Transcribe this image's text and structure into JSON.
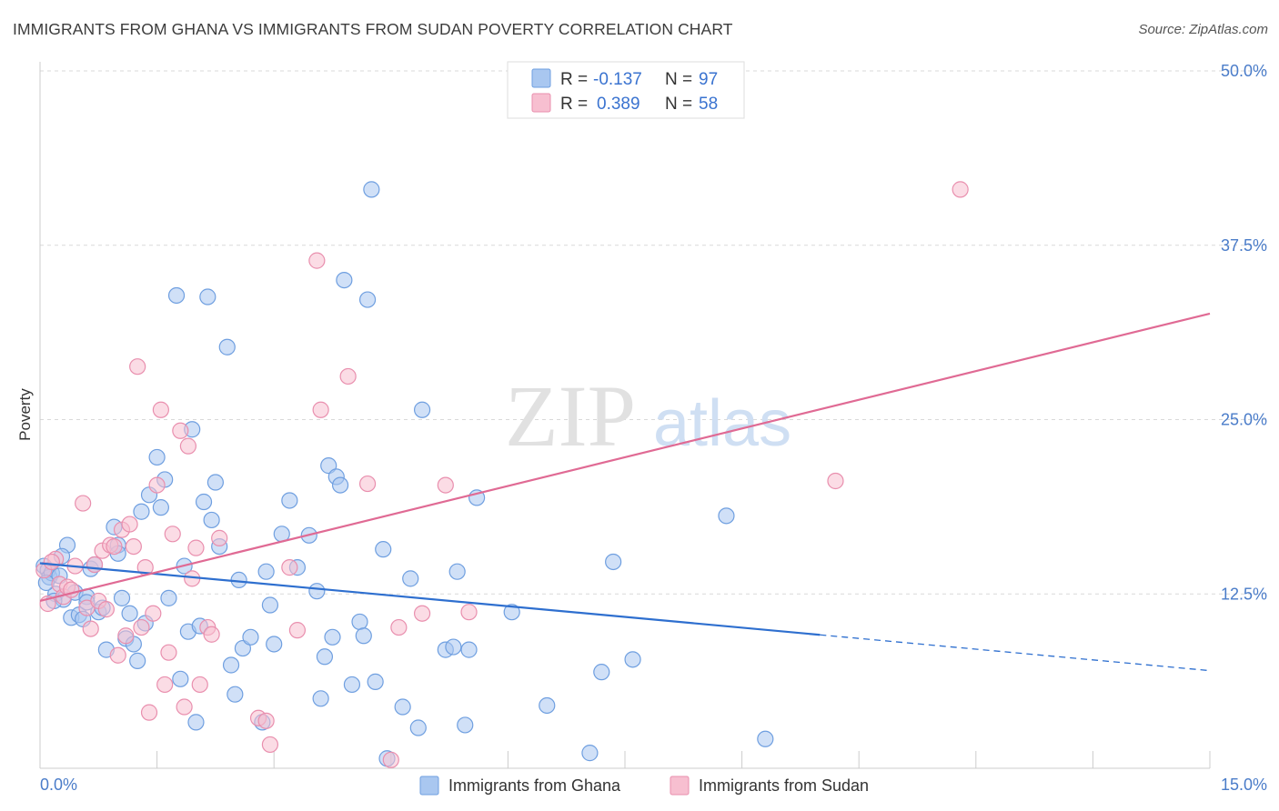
{
  "title": "IMMIGRANTS FROM GHANA VS IMMIGRANTS FROM SUDAN POVERTY CORRELATION CHART",
  "source": "Source: ZipAtlas.com",
  "watermark": {
    "zip": "ZIP",
    "atlas": "atlas"
  },
  "colors": {
    "ghana_fill": "#a9c7f0",
    "ghana_stroke": "#6f9fe0",
    "ghana_line": "#2e6fcf",
    "sudan_fill": "#f7bfd0",
    "sudan_stroke": "#e98fae",
    "sudan_line": "#e06a94",
    "grid": "#d9d9d9",
    "tick_label": "#4a7cc9"
  },
  "legend": {
    "rows": [
      {
        "r_label": "R =",
        "r_value": "-0.137",
        "n_label": "N =",
        "n_value": "97"
      },
      {
        "r_label": "R =",
        "r_value": "0.389",
        "n_label": "N =",
        "n_value": "58"
      }
    ]
  },
  "chart_data": {
    "type": "scatter",
    "title": "IMMIGRANTS FROM GHANA VS IMMIGRANTS FROM SUDAN POVERTY CORRELATION CHART",
    "xlabel": "",
    "ylabel": "Poverty",
    "xlim": [
      0,
      15
    ],
    "ylim": [
      0,
      50
    ],
    "x_tick_labels": [
      "0.0%",
      "15.0%"
    ],
    "y_ticks": [
      12.5,
      25.0,
      37.5,
      50.0
    ],
    "y_tick_labels": [
      "12.5%",
      "25.0%",
      "37.5%",
      "50.0%"
    ],
    "grid": true,
    "series": [
      {
        "name": "Immigrants from Ghana",
        "R": -0.137,
        "N": 97,
        "trend": {
          "x_start": 0.0,
          "y_start": 14.7,
          "x_solid_end": 10.0,
          "x_end": 15.0,
          "y_end": 7.0
        },
        "points": [
          [
            0.05,
            14.5
          ],
          [
            0.1,
            14.2
          ],
          [
            0.12,
            13.7
          ],
          [
            0.15,
            14.0
          ],
          [
            0.2,
            12.5
          ],
          [
            0.25,
            13.8
          ],
          [
            0.3,
            12.1
          ],
          [
            0.35,
            16.0
          ],
          [
            0.4,
            10.8
          ],
          [
            0.45,
            12.6
          ],
          [
            0.5,
            11.0
          ],
          [
            0.55,
            10.7
          ],
          [
            0.6,
            12.3
          ],
          [
            0.65,
            14.3
          ],
          [
            0.7,
            14.6
          ],
          [
            0.75,
            11.2
          ],
          [
            0.8,
            11.5
          ],
          [
            0.85,
            8.5
          ],
          [
            0.95,
            17.3
          ],
          [
            1.0,
            16.0
          ],
          [
            1.05,
            12.2
          ],
          [
            1.1,
            9.3
          ],
          [
            1.15,
            11.1
          ],
          [
            1.2,
            8.9
          ],
          [
            1.25,
            7.7
          ],
          [
            1.3,
            18.4
          ],
          [
            1.35,
            10.4
          ],
          [
            1.4,
            19.6
          ],
          [
            1.5,
            22.3
          ],
          [
            1.55,
            18.7
          ],
          [
            1.6,
            20.7
          ],
          [
            1.65,
            12.2
          ],
          [
            1.75,
            33.9
          ],
          [
            1.8,
            6.4
          ],
          [
            1.85,
            14.5
          ],
          [
            1.9,
            9.8
          ],
          [
            1.95,
            24.3
          ],
          [
            2.0,
            3.3
          ],
          [
            2.05,
            10.2
          ],
          [
            2.1,
            19.1
          ],
          [
            2.15,
            33.8
          ],
          [
            2.2,
            17.8
          ],
          [
            2.25,
            20.5
          ],
          [
            2.3,
            15.9
          ],
          [
            2.4,
            30.2
          ],
          [
            2.45,
            7.4
          ],
          [
            2.5,
            5.3
          ],
          [
            2.6,
            8.6
          ],
          [
            2.7,
            9.4
          ],
          [
            2.85,
            3.3
          ],
          [
            2.9,
            14.1
          ],
          [
            2.95,
            11.7
          ],
          [
            3.0,
            8.9
          ],
          [
            3.1,
            16.8
          ],
          [
            3.2,
            19.2
          ],
          [
            3.3,
            14.4
          ],
          [
            3.45,
            16.7
          ],
          [
            3.6,
            5.0
          ],
          [
            3.65,
            8.0
          ],
          [
            3.7,
            21.7
          ],
          [
            3.75,
            9.4
          ],
          [
            3.8,
            20.9
          ],
          [
            3.85,
            20.3
          ],
          [
            3.9,
            35.0
          ],
          [
            4.0,
            6.0
          ],
          [
            4.1,
            10.5
          ],
          [
            4.15,
            9.5
          ],
          [
            4.2,
            33.6
          ],
          [
            4.25,
            41.5
          ],
          [
            4.3,
            6.2
          ],
          [
            4.4,
            15.7
          ],
          [
            4.45,
            0.7
          ],
          [
            4.65,
            4.4
          ],
          [
            4.75,
            13.6
          ],
          [
            4.85,
            2.9
          ],
          [
            4.9,
            25.7
          ],
          [
            5.2,
            8.5
          ],
          [
            5.3,
            8.7
          ],
          [
            5.35,
            14.1
          ],
          [
            5.45,
            3.1
          ],
          [
            5.5,
            8.5
          ],
          [
            5.6,
            19.4
          ],
          [
            6.05,
            11.2
          ],
          [
            6.5,
            4.5
          ],
          [
            7.05,
            1.1
          ],
          [
            7.2,
            6.9
          ],
          [
            7.35,
            14.8
          ],
          [
            7.6,
            7.8
          ],
          [
            8.8,
            18.1
          ],
          [
            9.3,
            2.1
          ],
          [
            0.08,
            13.3
          ],
          [
            0.18,
            12.0
          ],
          [
            0.28,
            15.2
          ],
          [
            0.6,
            11.9
          ],
          [
            1.0,
            15.4
          ],
          [
            2.55,
            13.5
          ],
          [
            3.55,
            12.7
          ]
        ]
      },
      {
        "name": "Immigrants from Sudan",
        "R": 0.389,
        "N": 58,
        "trend": {
          "x_start": 0.0,
          "y_start": 12.0,
          "x_end": 15.0,
          "y_end": 32.6
        },
        "points": [
          [
            0.05,
            14.2
          ],
          [
            0.1,
            11.8
          ],
          [
            0.2,
            15.0
          ],
          [
            0.25,
            13.2
          ],
          [
            0.3,
            12.3
          ],
          [
            0.35,
            13.0
          ],
          [
            0.45,
            14.5
          ],
          [
            0.55,
            19.0
          ],
          [
            0.6,
            11.5
          ],
          [
            0.65,
            10.0
          ],
          [
            0.7,
            14.6
          ],
          [
            0.75,
            12.0
          ],
          [
            0.8,
            15.6
          ],
          [
            0.85,
            11.4
          ],
          [
            0.9,
            16.0
          ],
          [
            0.95,
            15.9
          ],
          [
            1.0,
            8.1
          ],
          [
            1.05,
            17.1
          ],
          [
            1.1,
            9.5
          ],
          [
            1.15,
            17.5
          ],
          [
            1.2,
            15.9
          ],
          [
            1.25,
            28.8
          ],
          [
            1.3,
            10.1
          ],
          [
            1.35,
            14.4
          ],
          [
            1.4,
            4.0
          ],
          [
            1.45,
            11.1
          ],
          [
            1.5,
            20.3
          ],
          [
            1.55,
            25.7
          ],
          [
            1.6,
            6.0
          ],
          [
            1.65,
            8.3
          ],
          [
            1.7,
            16.8
          ],
          [
            1.8,
            24.2
          ],
          [
            1.85,
            4.4
          ],
          [
            1.9,
            23.1
          ],
          [
            1.95,
            13.6
          ],
          [
            2.0,
            15.8
          ],
          [
            2.05,
            6.0
          ],
          [
            2.15,
            10.1
          ],
          [
            2.2,
            9.6
          ],
          [
            2.3,
            16.5
          ],
          [
            2.8,
            3.6
          ],
          [
            2.9,
            3.4
          ],
          [
            2.95,
            1.7
          ],
          [
            3.2,
            14.4
          ],
          [
            3.3,
            9.9
          ],
          [
            3.55,
            36.4
          ],
          [
            3.6,
            25.7
          ],
          [
            3.95,
            28.1
          ],
          [
            4.2,
            20.4
          ],
          [
            4.5,
            0.6
          ],
          [
            4.6,
            10.1
          ],
          [
            4.9,
            11.1
          ],
          [
            5.2,
            20.3
          ],
          [
            5.5,
            11.2
          ],
          [
            10.2,
            20.6
          ],
          [
            11.8,
            41.5
          ],
          [
            0.15,
            14.8
          ],
          [
            0.4,
            12.8
          ]
        ]
      }
    ]
  },
  "bottom_legend": [
    {
      "label": "Immigrants from Ghana"
    },
    {
      "label": "Immigrants from Sudan"
    }
  ]
}
